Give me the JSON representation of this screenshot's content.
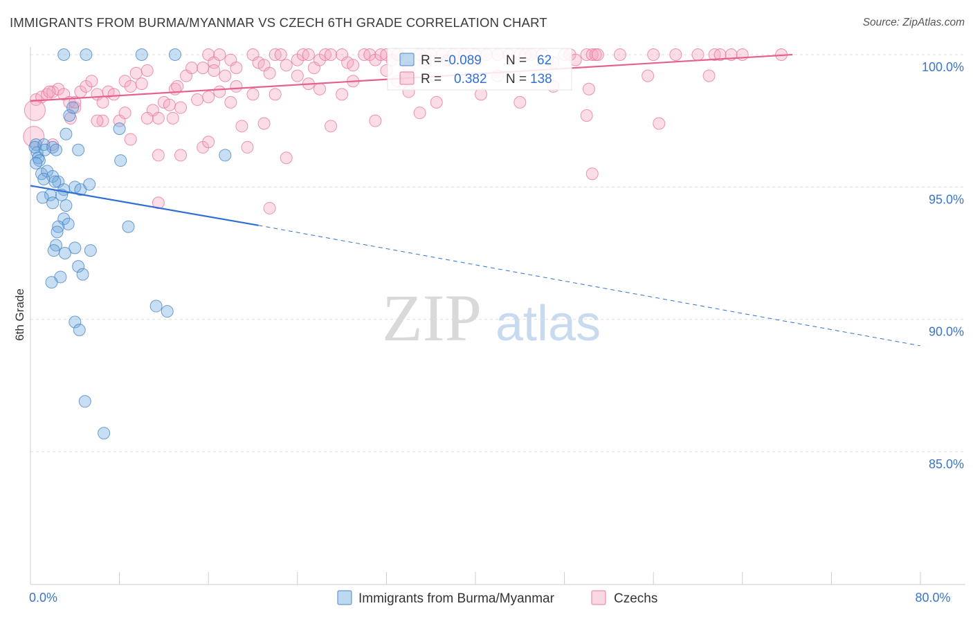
{
  "header": {
    "title": "IMMIGRANTS FROM BURMA/MYANMAR VS CZECH 6TH GRADE CORRELATION CHART",
    "source": "Source: ZipAtlas.com"
  },
  "watermark": {
    "zip": "ZIP",
    "atlas": "atlas"
  },
  "chart_data": {
    "type": "scatter",
    "title": "IMMIGRANTS FROM BURMA/MYANMAR VS CZECH 6TH GRADE CORRELATION CHART",
    "xlabel": "",
    "ylabel": "6th Grade",
    "xlim": [
      0,
      80
    ],
    "ylim": [
      80.3,
      100.8
    ],
    "x_tick_labels": [
      {
        "value": 0,
        "label": "0.0%"
      },
      {
        "value": 80,
        "label": "80.0%"
      }
    ],
    "x_minor_ticks": [
      0,
      8,
      16,
      24,
      32,
      40,
      48,
      56,
      64,
      72,
      80
    ],
    "y_ticks": [
      {
        "value": 100,
        "label": "100.0%"
      },
      {
        "value": 95,
        "label": "95.0%"
      },
      {
        "value": 90,
        "label": "90.0%"
      },
      {
        "value": 85,
        "label": "85.0%"
      }
    ],
    "grid": true,
    "legend": {
      "placement": "top-center",
      "rows": [
        {
          "r_label": "R =",
          "r_value": "-0.089",
          "n_label": "N =",
          "n_value": "62"
        },
        {
          "r_label": "R =",
          "r_value": "0.382",
          "n_label": "N =",
          "n_value": "138"
        }
      ]
    },
    "series": [
      {
        "name": "Immigrants from Burma/Myanmar",
        "color": "#6fa8dc",
        "stroke": "#4a86c8",
        "trend": {
          "x_start": 0,
          "y_start": 95.05,
          "x_solid_end": 20.5,
          "y_solid_end": 93.55,
          "x_end": 80,
          "y_end": 89.0,
          "color": "#2e6fd3"
        },
        "points": [
          [
            3,
            100
          ],
          [
            5,
            100
          ],
          [
            10,
            100
          ],
          [
            13,
            100
          ],
          [
            0.5,
            96.6
          ],
          [
            0.6,
            96.3
          ],
          [
            0.4,
            96.5
          ],
          [
            0.7,
            96.1
          ],
          [
            0.8,
            96.0
          ],
          [
            0.5,
            95.9
          ],
          [
            1.2,
            96.6
          ],
          [
            1.3,
            96.4
          ],
          [
            2.0,
            96.5
          ],
          [
            2.3,
            96.4
          ],
          [
            3.2,
            97.0
          ],
          [
            3.5,
            97.7
          ],
          [
            4.3,
            96.4
          ],
          [
            3.8,
            98.0
          ],
          [
            8.0,
            97.2
          ],
          [
            8.1,
            96.0
          ],
          [
            17.5,
            96.2
          ],
          [
            1.0,
            95.5
          ],
          [
            1.5,
            95.6
          ],
          [
            2.0,
            95.4
          ],
          [
            2.5,
            95.2
          ],
          [
            1.2,
            95.3
          ],
          [
            2.2,
            95.2
          ],
          [
            3.0,
            94.9
          ],
          [
            4.0,
            95.0
          ],
          [
            4.5,
            94.9
          ],
          [
            5.3,
            95.1
          ],
          [
            1.8,
            94.7
          ],
          [
            2.8,
            94.7
          ],
          [
            1.1,
            94.6
          ],
          [
            2.0,
            94.4
          ],
          [
            3.2,
            94.3
          ],
          [
            3.0,
            93.8
          ],
          [
            3.4,
            93.6
          ],
          [
            2.5,
            93.5
          ],
          [
            2.4,
            93.3
          ],
          [
            8.8,
            93.5
          ],
          [
            4.0,
            92.7
          ],
          [
            2.3,
            92.8
          ],
          [
            2.1,
            92.6
          ],
          [
            3.1,
            92.5
          ],
          [
            5.4,
            92.6
          ],
          [
            4.3,
            92.0
          ],
          [
            4.7,
            91.7
          ],
          [
            2.7,
            91.6
          ],
          [
            1.9,
            91.4
          ],
          [
            11.3,
            90.5
          ],
          [
            12.3,
            90.3
          ],
          [
            4.0,
            89.9
          ],
          [
            4.4,
            89.6
          ],
          [
            4.9,
            86.9
          ],
          [
            6.6,
            85.7
          ]
        ]
      },
      {
        "name": "Czechs",
        "color": "#f4a6bf",
        "stroke": "#e8789f",
        "trend": {
          "x_start": 0,
          "y_start": 98.25,
          "x_end": 68.5,
          "y_end": 100.0,
          "color": "#e75f8d"
        },
        "points": [
          [
            16,
            100
          ],
          [
            16.5,
            99.7
          ],
          [
            17,
            100
          ],
          [
            18,
            99.8
          ],
          [
            18.5,
            99.5
          ],
          [
            20,
            100
          ],
          [
            20.5,
            99.7
          ],
          [
            21,
            99.6
          ],
          [
            22,
            100
          ],
          [
            22.5,
            100
          ],
          [
            23,
            99.6
          ],
          [
            24,
            99.8
          ],
          [
            24.5,
            100
          ],
          [
            25,
            100
          ],
          [
            25.5,
            99.5
          ],
          [
            26,
            99.8
          ],
          [
            26.5,
            100
          ],
          [
            27,
            100
          ],
          [
            28,
            100
          ],
          [
            28.5,
            99.7
          ],
          [
            29,
            99.6
          ],
          [
            30,
            100
          ],
          [
            30.5,
            100
          ],
          [
            31,
            99.8
          ],
          [
            31.5,
            100
          ],
          [
            32,
            100
          ],
          [
            32.5,
            99.8
          ],
          [
            33,
            100
          ],
          [
            34,
            99.5
          ],
          [
            35,
            100
          ],
          [
            35.5,
            99.7
          ],
          [
            36,
            100
          ],
          [
            37,
            100
          ],
          [
            37.5,
            99.8
          ],
          [
            38,
            100
          ],
          [
            39,
            100
          ],
          [
            40,
            100
          ],
          [
            41,
            100
          ],
          [
            42,
            100
          ],
          [
            43,
            100
          ],
          [
            44,
            100
          ],
          [
            44.5,
            100
          ],
          [
            45,
            100
          ],
          [
            46,
            100
          ],
          [
            47,
            99.7
          ],
          [
            48,
            100
          ],
          [
            48.5,
            100
          ],
          [
            49,
            99.8
          ],
          [
            50,
            100
          ],
          [
            50.5,
            100
          ],
          [
            50.8,
            100
          ],
          [
            51,
            100
          ],
          [
            53,
            100
          ],
          [
            56,
            100
          ],
          [
            58,
            100
          ],
          [
            60,
            100
          ],
          [
            61.5,
            100
          ],
          [
            62,
            100
          ],
          [
            63,
            100
          ],
          [
            64,
            100
          ],
          [
            67.5,
            100
          ],
          [
            50.2,
            98.7
          ],
          [
            0.5,
            98.3
          ],
          [
            1.0,
            98.4
          ],
          [
            1.5,
            98.5
          ],
          [
            2.0,
            98.6
          ],
          [
            2.5,
            98.7
          ],
          [
            3.0,
            98.5
          ],
          [
            3.5,
            98.2
          ],
          [
            4.0,
            98.0
          ],
          [
            4.5,
            98.6
          ],
          [
            5.0,
            98.8
          ],
          [
            5.5,
            99.0
          ],
          [
            6.0,
            98.5
          ],
          [
            6.5,
            98.2
          ],
          [
            7.0,
            98.6
          ],
          [
            7.5,
            98.5
          ],
          [
            8.0,
            97.5
          ],
          [
            8.5,
            99.0
          ],
          [
            9.0,
            98.8
          ],
          [
            9.5,
            99.3
          ],
          [
            10.0,
            98.9
          ],
          [
            10.5,
            99.4
          ],
          [
            11.0,
            97.9
          ],
          [
            11.5,
            97.6
          ],
          [
            12.0,
            98.2
          ],
          [
            12.5,
            98.1
          ],
          [
            13.0,
            98.7
          ],
          [
            13.5,
            98.0
          ],
          [
            14.0,
            99.2
          ],
          [
            14.5,
            99.5
          ],
          [
            15.0,
            98.3
          ],
          [
            15.5,
            99.5
          ],
          [
            16.0,
            98.4
          ],
          [
            16.5,
            99.4
          ],
          [
            17.0,
            98.6
          ],
          [
            17.5,
            99.2
          ],
          [
            18.0,
            98.2
          ],
          [
            18.5,
            98.8
          ],
          [
            19.0,
            97.3
          ],
          [
            20.0,
            98.5
          ],
          [
            21.0,
            97.4
          ],
          [
            21.5,
            99.3
          ],
          [
            22.0,
            98.5
          ],
          [
            23.0,
            96.1
          ],
          [
            24.0,
            99.2
          ],
          [
            25.0,
            98.9
          ],
          [
            26.0,
            98.7
          ],
          [
            27.0,
            97.3
          ],
          [
            28.0,
            98.5
          ],
          [
            29.0,
            99.0
          ],
          [
            31.0,
            97.5
          ],
          [
            32.0,
            99.4
          ],
          [
            33.0,
            99.0
          ],
          [
            34.0,
            98.6
          ],
          [
            35.0,
            97.8
          ],
          [
            36.5,
            98.2
          ],
          [
            40.5,
            98.5
          ],
          [
            42.0,
            99.2
          ],
          [
            44.0,
            98.2
          ],
          [
            47.0,
            98.8
          ],
          [
            50.0,
            97.7
          ],
          [
            50.5,
            95.5
          ],
          [
            55.5,
            99.2
          ],
          [
            56.5,
            97.4
          ],
          [
            61.0,
            99.2
          ],
          [
            8.5,
            97.8
          ],
          [
            10.5,
            97.6
          ],
          [
            11.5,
            96.2
          ],
          [
            13.5,
            96.2
          ],
          [
            15.5,
            96.5
          ],
          [
            16.0,
            96.7
          ],
          [
            19.5,
            96.5
          ],
          [
            11.5,
            94.4
          ],
          [
            21.5,
            94.2
          ],
          [
            4.0,
            98.2
          ],
          [
            3.6,
            97.6
          ],
          [
            1.7,
            98.6
          ],
          [
            0.4,
            97.9
          ],
          [
            0.3,
            96.9
          ],
          [
            2.0,
            96.6
          ],
          [
            6.5,
            97.5
          ],
          [
            13.2,
            98.8
          ],
          [
            6.0,
            97.5
          ],
          [
            9.0,
            96.8
          ],
          [
            12.8,
            97.6
          ]
        ]
      }
    ]
  }
}
